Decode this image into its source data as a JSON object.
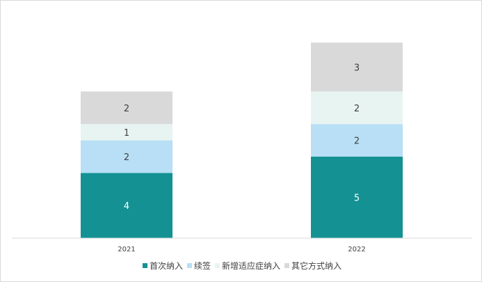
{
  "chart_data": {
    "type": "bar",
    "stacked": true,
    "categories": [
      "2021",
      "2022"
    ],
    "series": [
      {
        "name": "首次纳入",
        "values": [
          4,
          5
        ],
        "color": "#149193",
        "label_color": "#ffffff"
      },
      {
        "name": "续签",
        "values": [
          2,
          2
        ],
        "color": "#b8dff5",
        "label_color": "#404040"
      },
      {
        "name": "新增适应症纳入",
        "values": [
          1,
          2
        ],
        "color": "#e8f4f2",
        "label_color": "#404040"
      },
      {
        "name": "其它方式纳入",
        "values": [
          2,
          3
        ],
        "color": "#d9d9d9",
        "label_color": "#404040"
      }
    ],
    "title": "",
    "xlabel": "",
    "ylabel": "",
    "ylim": [
      0,
      12
    ],
    "grid": false,
    "legend": "bottom"
  }
}
